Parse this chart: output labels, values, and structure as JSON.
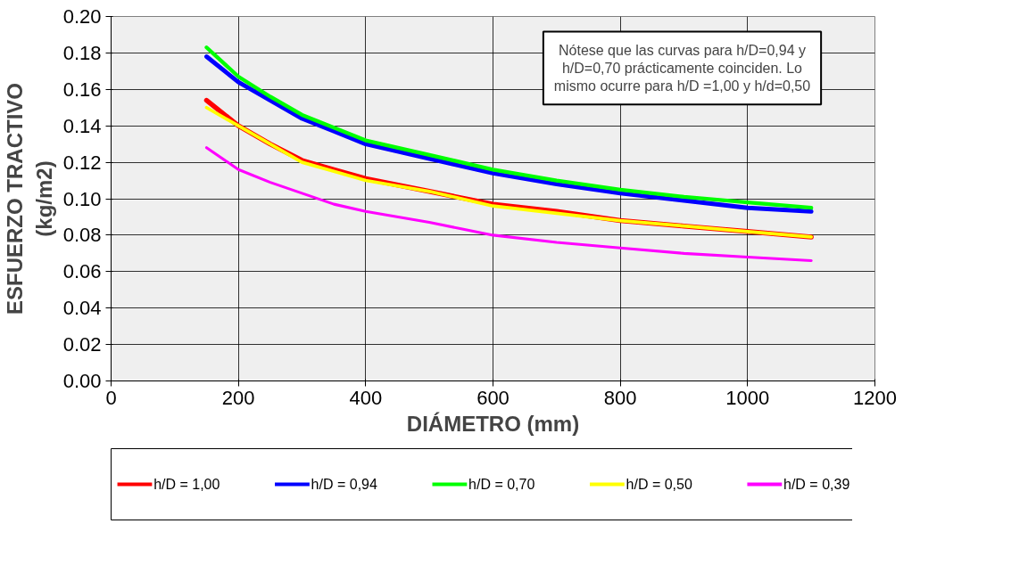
{
  "chart_data": {
    "type": "line",
    "xlabel": "DIÁMETRO (mm)",
    "ylabel": "ESFUERZO TRACTIVO (kg/m2)",
    "x": [
      150,
      200,
      250,
      300,
      350,
      400,
      500,
      600,
      700,
      800,
      900,
      1000,
      1100
    ],
    "series": [
      {
        "name": "h/D = 1,00",
        "color": "#ff0000",
        "values": [
          0.154,
          0.14,
          0.13,
          0.121,
          0.116,
          0.111,
          0.104,
          0.097,
          0.093,
          0.088,
          0.085,
          0.082,
          0.079
        ]
      },
      {
        "name": "h/D = 0,94",
        "color": "#0000ff",
        "values": [
          0.178,
          0.164,
          0.154,
          0.144,
          0.137,
          0.13,
          0.122,
          0.114,
          0.108,
          0.103,
          0.099,
          0.095,
          0.093
        ]
      },
      {
        "name": "h/D = 0,70",
        "color": "#00ff00",
        "values": [
          0.183,
          0.167,
          0.156,
          0.146,
          0.139,
          0.132,
          0.124,
          0.116,
          0.11,
          0.105,
          0.101,
          0.098,
          0.095
        ]
      },
      {
        "name": "h/D = 0,50",
        "color": "#ffff00",
        "values": [
          0.15,
          0.14,
          0.13,
          0.12,
          0.115,
          0.11,
          0.104,
          0.096,
          0.092,
          0.088,
          0.085,
          0.082,
          0.079
        ]
      },
      {
        "name": "h/D = 0,39",
        "color": "#ff00ff",
        "values": [
          0.128,
          0.116,
          0.109,
          0.103,
          0.097,
          0.093,
          0.087,
          0.08,
          0.076,
          0.073,
          0.07,
          0.068,
          0.066
        ]
      }
    ],
    "xlim": [
      0,
      1200
    ],
    "xticks": [
      0,
      200,
      400,
      600,
      800,
      1000,
      1200
    ],
    "ylim": [
      0,
      0.2
    ],
    "yticks": [
      {
        "value": 0,
        "label": "0.00"
      },
      {
        "value": 0.02,
        "label": "0.02"
      },
      {
        "value": 0.04,
        "label": "0.04"
      },
      {
        "value": 0.06,
        "label": "0.06"
      },
      {
        "value": 0.08,
        "label": "0.08"
      },
      {
        "value": 0.1,
        "label": "0.10"
      },
      {
        "value": 0.12,
        "label": "0.12"
      },
      {
        "value": 0.14,
        "label": "0.14"
      },
      {
        "value": 0.16,
        "label": "0.16"
      },
      {
        "value": 0.18,
        "label": "0.18"
      },
      {
        "value": 0.2,
        "label": "0.20"
      }
    ],
    "grid": true,
    "legend": "bottom",
    "marker": "none",
    "line_style": "solid",
    "annotations": [
      "Nótese que las curvas para h/D=0,94 y h/D=0,70 prácticamente coinciden. Lo mismo ocurre para h/D =1,00 y h/d=0,50"
    ]
  }
}
